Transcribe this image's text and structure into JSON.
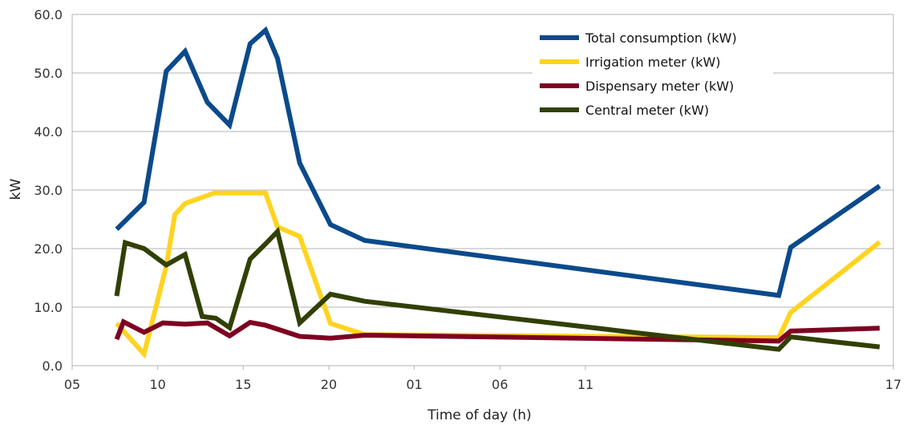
{
  "chart_data": {
    "type": "line",
    "title": "",
    "xlabel": "Time of day (h)",
    "ylabel": "kW",
    "ylim": [
      0,
      60
    ],
    "yticks": [
      "0.0",
      "10.0",
      "20.0",
      "30.0",
      "40.0",
      "50.0",
      "60.0"
    ],
    "xticks": [
      "05",
      "10",
      "15",
      "20",
      "01",
      "06",
      "11",
      "17"
    ],
    "xlim": [
      5,
      53
    ],
    "grid": true,
    "legend_position": "top-right",
    "colors": {
      "total": "#0b4a8b",
      "irrigation": "#ffd320",
      "dispensary": "#7e0021",
      "central": "#314004",
      "grid": "#b3b3b3"
    },
    "series": [
      {
        "name": "Total consumption (kW)",
        "color": "#0b4a8b",
        "x": [
          7.6,
          9.2,
          10.5,
          11.6,
          12.9,
          14.2,
          15.4,
          16.3,
          17.0,
          18.3,
          20.1,
          22.1,
          46.3,
          47.0,
          52.2
        ],
        "y": [
          23.3,
          27.9,
          50.3,
          53.7,
          45.0,
          41.1,
          55.0,
          57.3,
          52.5,
          34.6,
          24.1,
          21.4,
          12.0,
          20.2,
          30.7
        ]
      },
      {
        "name": "Irrigation meter (kW)",
        "color": "#ffd320",
        "x": [
          7.6,
          9.2,
          10.5,
          11.0,
          11.6,
          13.3,
          14.0,
          16.3,
          17.0,
          18.3,
          20.1,
          22.1,
          46.3,
          47.0,
          52.2
        ],
        "y": [
          7.2,
          2.0,
          17.0,
          25.8,
          27.7,
          29.5,
          29.5,
          29.5,
          23.7,
          22.1,
          7.2,
          5.3,
          4.8,
          9.1,
          21.1
        ]
      },
      {
        "name": "Dispensary meter (kW)",
        "color": "#7e0021",
        "x": [
          7.6,
          8.0,
          9.2,
          10.3,
          11.6,
          12.9,
          14.2,
          15.4,
          16.3,
          18.3,
          20.1,
          22.1,
          46.3,
          47.0,
          52.2
        ],
        "y": [
          4.5,
          7.5,
          5.7,
          7.3,
          7.1,
          7.3,
          5.1,
          7.4,
          6.9,
          5.0,
          4.7,
          5.2,
          4.2,
          5.9,
          6.4
        ]
      },
      {
        "name": "Central meter (kW)",
        "color": "#314004",
        "x": [
          7.6,
          8.1,
          9.2,
          10.5,
          11.6,
          12.6,
          13.4,
          14.2,
          15.4,
          16.3,
          17.0,
          18.3,
          20.1,
          22.1,
          46.3,
          47.0,
          52.2
        ],
        "y": [
          11.9,
          21.0,
          20.0,
          17.2,
          19.0,
          8.4,
          8.1,
          6.5,
          18.2,
          20.8,
          22.9,
          7.3,
          12.2,
          11.0,
          2.8,
          4.9,
          3.2
        ]
      }
    ]
  }
}
